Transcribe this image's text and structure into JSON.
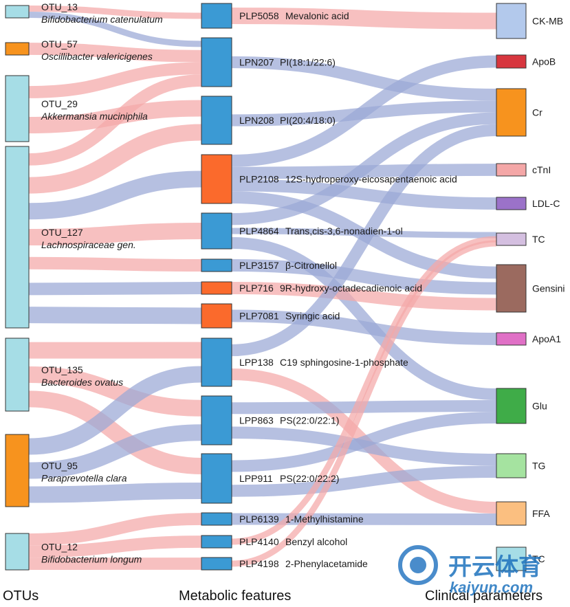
{
  "chart_data": {
    "type": "sankey",
    "columns": [
      "OTUs",
      "Metabolic features",
      "Clinical parameters"
    ],
    "colors": {
      "positive": "#f4a7a7",
      "negative": "#9aa8d6",
      "otu": "#a6dde6",
      "metabolite_blue": "#3b9ad4",
      "metabolite_orange": "#fb6a2c"
    },
    "nodes": {
      "otus": [
        {
          "id": "OTU_13",
          "taxon": "Bifidobacterium catenulatum",
          "color": "#a6dde6"
        },
        {
          "id": "OTU_57",
          "taxon": "Oscillibacter valericigenes",
          "color": "#f7931e"
        },
        {
          "id": "OTU_29",
          "taxon": "Akkermansia muciniphila",
          "color": "#a6dde6"
        },
        {
          "id": "OTU_127",
          "taxon": "Lachnospiraceae gen.",
          "color": "#a6dde6"
        },
        {
          "id": "OTU_135",
          "taxon": "Bacteroides ovatus",
          "color": "#a6dde6"
        },
        {
          "id": "OTU_95",
          "taxon": "Paraprevotella clara",
          "color": "#f7931e"
        },
        {
          "id": "OTU_12",
          "taxon": "Bifidobacterium longum",
          "color": "#a6dde6"
        }
      ],
      "metabolites": [
        {
          "id": "PLP5058",
          "name": "Mevalonic acid",
          "color": "#3b9ad4"
        },
        {
          "id": "LPN207",
          "name": "PI(18:1/22:6)",
          "color": "#3b9ad4"
        },
        {
          "id": "LPN208",
          "name": "PI(20:4/18:0)",
          "color": "#3b9ad4"
        },
        {
          "id": "PLP2108",
          "name": "12S-hydroperoxy-eicosapentaenoic acid",
          "color": "#fb6a2c"
        },
        {
          "id": "PLP4864",
          "name": "Trans,cis-3,6-nonadien-1-ol",
          "color": "#3b9ad4"
        },
        {
          "id": "PLP3157",
          "name": "β-Citronellol",
          "color": "#3b9ad4"
        },
        {
          "id": "PLP716",
          "name": "9R-hydroxy-octadecadienoic acid",
          "color": "#fb6a2c"
        },
        {
          "id": "PLP7081",
          "name": "Syringic acid",
          "color": "#fb6a2c"
        },
        {
          "id": "LPP138",
          "name": "C19 sphingosine-1-phosphate",
          "color": "#3b9ad4"
        },
        {
          "id": "LPP863",
          "name": "PS(22:0/22:1)",
          "color": "#3b9ad4"
        },
        {
          "id": "LPP911",
          "name": "PS(22:0/22:2)",
          "color": "#3b9ad4"
        },
        {
          "id": "PLP6139",
          "name": "1-Methylhistamine",
          "color": "#3b9ad4"
        },
        {
          "id": "PLP4140",
          "name": "Benzyl alcohol",
          "color": "#3b9ad4"
        },
        {
          "id": "PLP4198",
          "name": "2-Phenylacetamide",
          "color": "#3b9ad4"
        }
      ],
      "clinical": [
        {
          "id": "CK-MB",
          "color": "#b3c9ec"
        },
        {
          "id": "ApoB",
          "color": "#d7363e"
        },
        {
          "id": "Cr",
          "color": "#f7931e"
        },
        {
          "id": "cTnI",
          "color": "#f4a7a7"
        },
        {
          "id": "LDL-C",
          "color": "#9b72c9"
        },
        {
          "id": "TC",
          "color": "#d4bfe0"
        },
        {
          "id": "Gensini",
          "color": "#9b6a5f"
        },
        {
          "id": "ApoA1",
          "color": "#e070c6"
        },
        {
          "id": "Glu",
          "color": "#3fac48"
        },
        {
          "id": "TG",
          "color": "#a5e3a0"
        },
        {
          "id": "FFA",
          "color": "#fbbf80"
        },
        {
          "id": "TC",
          "color": "#a6dde6"
        }
      ]
    },
    "links": [
      {
        "source": "OTU_13",
        "target": "PLP5058",
        "sign": "positive"
      },
      {
        "source": "OTU_13",
        "target": "LPN207",
        "sign": "negative"
      },
      {
        "source": "OTU_57",
        "target": "LPN207",
        "sign": "positive"
      },
      {
        "source": "OTU_29",
        "target": "LPN207",
        "sign": "positive"
      },
      {
        "source": "OTU_29",
        "target": "LPN208",
        "sign": "positive"
      },
      {
        "source": "OTU_127",
        "target": "LPN207",
        "sign": "positive"
      },
      {
        "source": "OTU_127",
        "target": "LPN208",
        "sign": "positive"
      },
      {
        "source": "OTU_127",
        "target": "PLP2108",
        "sign": "negative"
      },
      {
        "source": "OTU_127",
        "target": "PLP4864",
        "sign": "positive"
      },
      {
        "source": "OTU_127",
        "target": "PLP3157",
        "sign": "positive"
      },
      {
        "source": "OTU_127",
        "target": "PLP716",
        "sign": "negative"
      },
      {
        "source": "OTU_127",
        "target": "PLP7081",
        "sign": "negative"
      },
      {
        "source": "OTU_135",
        "target": "LPP138",
        "sign": "positive"
      },
      {
        "source": "OTU_135",
        "target": "LPP863",
        "sign": "positive"
      },
      {
        "source": "OTU_135",
        "target": "LPP911",
        "sign": "positive"
      },
      {
        "source": "OTU_95",
        "target": "LPP138",
        "sign": "negative"
      },
      {
        "source": "OTU_95",
        "target": "LPP863",
        "sign": "negative"
      },
      {
        "source": "OTU_95",
        "target": "LPP911",
        "sign": "negative"
      },
      {
        "source": "OTU_12",
        "target": "PLP6139",
        "sign": "positive"
      },
      {
        "source": "OTU_12",
        "target": "PLP4140",
        "sign": "positive"
      },
      {
        "source": "OTU_12",
        "target": "PLP4198",
        "sign": "positive"
      },
      {
        "source": "PLP5058",
        "target": "CK-MB",
        "sign": "positive"
      },
      {
        "source": "LPN207",
        "target": "Cr",
        "sign": "negative"
      },
      {
        "source": "LPN208",
        "target": "Cr",
        "sign": "negative"
      },
      {
        "source": "PLP2108",
        "target": "ApoB",
        "sign": "negative"
      },
      {
        "source": "PLP2108",
        "target": "cTnI",
        "sign": "negative"
      },
      {
        "source": "PLP2108",
        "target": "LDL-C",
        "sign": "negative"
      },
      {
        "source": "PLP2108",
        "target": "Gensini",
        "sign": "negative"
      },
      {
        "source": "PLP4864",
        "target": "Cr",
        "sign": "negative"
      },
      {
        "source": "PLP4864",
        "target": "TC",
        "sign": "negative"
      },
      {
        "source": "PLP4864",
        "target": "Glu",
        "sign": "negative"
      },
      {
        "source": "PLP3157",
        "target": "Gensini",
        "sign": "negative"
      },
      {
        "source": "PLP716",
        "target": "Gensini",
        "sign": "positive"
      },
      {
        "source": "PLP7081",
        "target": "ApoA1",
        "sign": "negative"
      },
      {
        "source": "LPP138",
        "target": "Cr",
        "sign": "negative"
      },
      {
        "source": "LPP138",
        "target": "FFA",
        "sign": "positive"
      },
      {
        "source": "LPP863",
        "target": "Glu",
        "sign": "negative"
      },
      {
        "source": "LPP863",
        "target": "TG",
        "sign": "negative"
      },
      {
        "source": "LPP911",
        "target": "Glu",
        "sign": "negative"
      },
      {
        "source": "LPP911",
        "target": "TG",
        "sign": "negative"
      },
      {
        "source": "PLP6139",
        "target": "FFA",
        "sign": "negative"
      },
      {
        "source": "PLP4140",
        "target": "TC",
        "sign": "positive"
      },
      {
        "source": "PLP4198",
        "target": "TC",
        "sign": "positive"
      }
    ],
    "watermark": {
      "brand": "开云体育",
      "url": "kaiyun.com"
    }
  }
}
